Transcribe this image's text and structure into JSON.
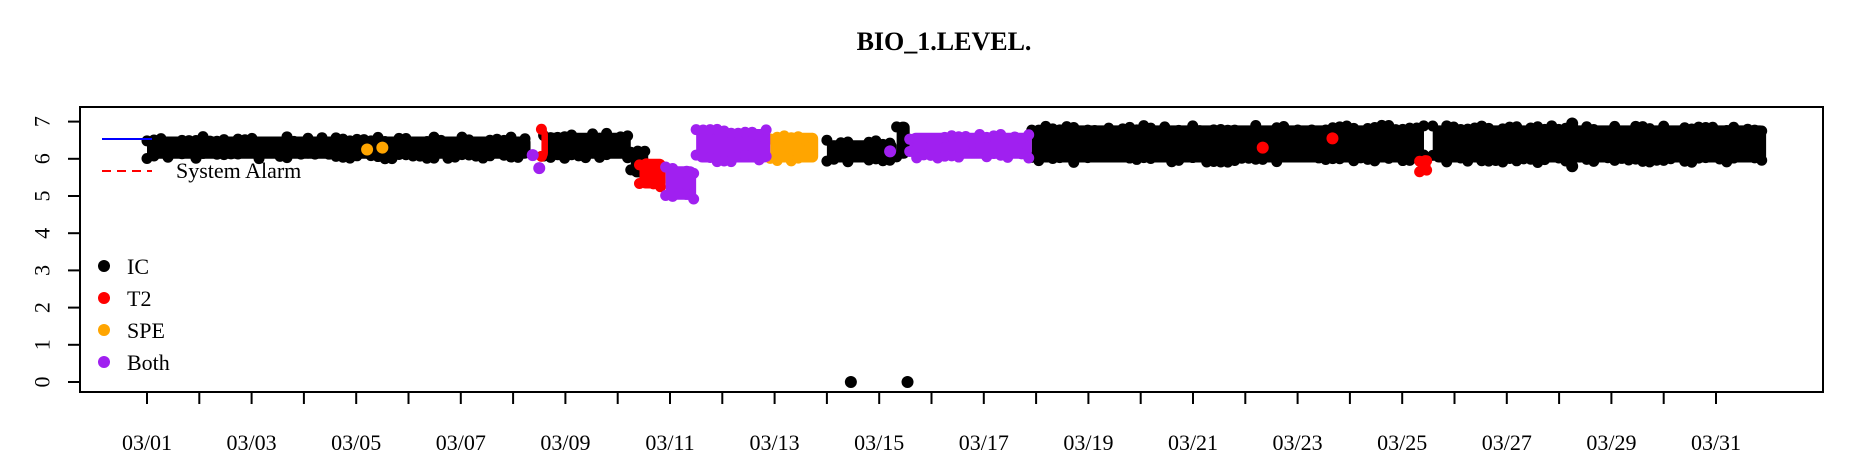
{
  "chart_data": {
    "type": "scatter",
    "title": "BIO_1.LEVEL.",
    "xlabel": "",
    "ylabel": "",
    "ylim": [
      0,
      7
    ],
    "xlim": [
      "03/01",
      "03/31"
    ],
    "x_ticks": [
      "03/01",
      "03/03",
      "03/05",
      "03/07",
      "03/09",
      "03/11",
      "03/13",
      "03/15",
      "03/17",
      "03/19",
      "03/21",
      "03/23",
      "03/25",
      "03/27",
      "03/29",
      "03/31"
    ],
    "y_ticks": [
      "0",
      "1",
      "2",
      "3",
      "4",
      "5",
      "6",
      "7"
    ],
    "grid": false,
    "legend_lines": {
      "placement": "top-left",
      "entries": [
        {
          "label": "",
          "color": "#0000ff",
          "style": "solid"
        },
        {
          "label": "System Alarm",
          "color": "#ff0000",
          "style": "dashed"
        }
      ]
    },
    "legend_points": {
      "placement": "left",
      "entries": [
        {
          "label": "IC",
          "color": "#000000"
        },
        {
          "label": "T2",
          "color": "#ff0000"
        },
        {
          "label": "SPE",
          "color": "#ffa500"
        },
        {
          "label": "Both",
          "color": "#a020f0"
        }
      ]
    },
    "series": [
      {
        "name": "IC",
        "color": "#000000",
        "segments": [
          {
            "start": "03/01 00:00",
            "end": "03/08 08:00",
            "low": 6.0,
            "high": 6.6
          },
          {
            "start": "03/08 14:00",
            "end": "03/10 06:00",
            "low": 6.0,
            "high": 6.7
          },
          {
            "start": "03/10 06:00",
            "end": "03/10 14:00",
            "low": 5.5,
            "high": 6.3
          },
          {
            "start": "03/14 00:00",
            "end": "03/15 08:00",
            "low": 5.9,
            "high": 6.5
          },
          {
            "start": "03/15 08:00",
            "end": "03/15 14:00",
            "low": 6.0,
            "high": 7.0
          },
          {
            "start": "03/17 22:00",
            "end": "03/25 10:00",
            "low": 5.9,
            "high": 6.9
          },
          {
            "start": "03/25 14:00",
            "end": "03/31 23:00",
            "low": 5.9,
            "high": 6.9
          }
        ],
        "points": [
          [
            "03/14 11:00",
            0
          ],
          [
            "03/15 13:00",
            0
          ],
          [
            "03/28 06:00",
            6.95
          ],
          [
            "03/28 06:00",
            5.8
          ]
        ]
      },
      {
        "name": "T2",
        "color": "#ff0000",
        "segments": [
          {
            "start": "03/08 13:00",
            "end": "03/08 16:00",
            "low": 6.0,
            "high": 6.8
          },
          {
            "start": "03/10 10:00",
            "end": "03/10 22:00",
            "low": 5.2,
            "high": 6.0
          },
          {
            "start": "03/25 08:00",
            "end": "03/25 13:00",
            "low": 5.6,
            "high": 6.1
          }
        ],
        "points": [
          [
            "03/22 08:00",
            6.3
          ],
          [
            "03/23 16:00",
            6.55
          ]
        ]
      },
      {
        "name": "SPE",
        "color": "#ffa500",
        "segments": [
          {
            "start": "03/12 22:00",
            "end": "03/13 20:00",
            "low": 5.9,
            "high": 6.7
          }
        ],
        "points": [
          [
            "03/05 05:00",
            6.25
          ],
          [
            "03/05 12:00",
            6.3
          ]
        ]
      },
      {
        "name": "Both",
        "color": "#a020f0",
        "segments": [
          {
            "start": "03/10 22:00",
            "end": "03/11 12:00",
            "low": 4.9,
            "high": 5.8
          },
          {
            "start": "03/11 12:00",
            "end": "03/12 22:00",
            "low": 5.9,
            "high": 6.8
          },
          {
            "start": "03/15 14:00",
            "end": "03/17 22:00",
            "low": 6.0,
            "high": 6.7
          }
        ],
        "points": [
          [
            "03/08 09:00",
            6.1
          ],
          [
            "03/08 12:00",
            5.75
          ],
          [
            "03/15 05:00",
            6.2
          ]
        ]
      }
    ]
  }
}
